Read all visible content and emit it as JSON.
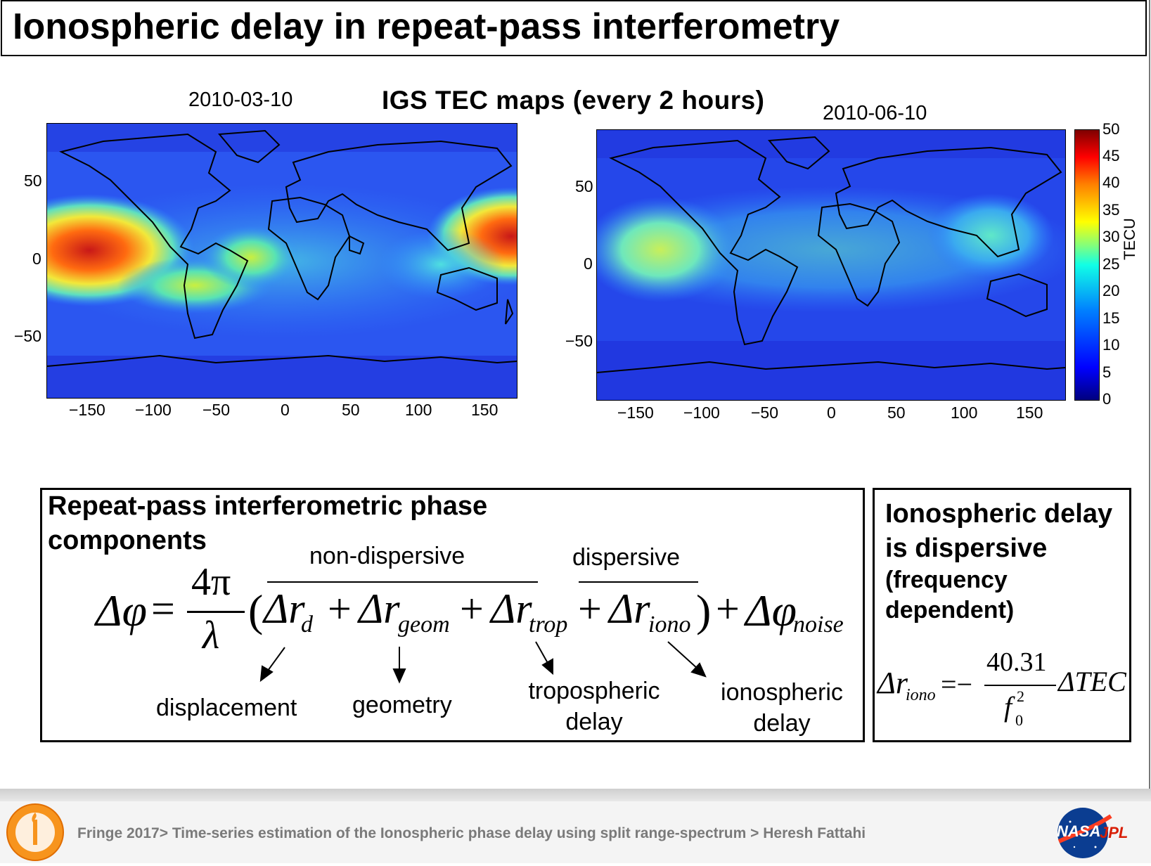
{
  "title": "Ionospheric delay in repeat-pass interferometry",
  "maps": {
    "heading": "IGS TEC maps (every 2 hours)",
    "left_date": "2010-03-10",
    "right_date": "2010-06-10",
    "x_ticks": [
      "−150",
      "−100",
      "−50",
      "0",
      "50",
      "100",
      "150"
    ],
    "y_ticks": [
      "50",
      "0",
      "−50"
    ],
    "colorbar": {
      "label": "TECU",
      "ticks": [
        "50",
        "45",
        "40",
        "35",
        "30",
        "25",
        "20",
        "15",
        "10",
        "5",
        "0"
      ]
    },
    "colors": {
      "low": "#1f2fd8",
      "mid": "#2f8cff",
      "high": "#e0301c"
    }
  },
  "phase_box": {
    "heading_line1": "Repeat-pass interferometric phase",
    "heading_line2": "components",
    "non_dispersive": "non-dispersive",
    "dispersive": "dispersive",
    "labels": {
      "displacement": "displacement",
      "geometry": "geometry",
      "trop_line1": "tropospheric",
      "trop_line2": "delay",
      "iono_line1": "ionospheric",
      "iono_line2": "delay"
    },
    "equation": {
      "lhs": "Δφ",
      "eq": "=",
      "num": "4π",
      "den": "λ",
      "open": "(",
      "d_main": "Δr",
      "d_sub": "d",
      "plus1": "+",
      "g_main": "Δr",
      "g_sub": "geom",
      "plus2": "+",
      "t_main": "Δr",
      "t_sub": "trop",
      "plus3": "+",
      "i_main": "Δr",
      "i_sub": "iono",
      "close": ")",
      "plus4": "+",
      "n_main": "Δφ",
      "n_sub": "noise"
    }
  },
  "iono_box": {
    "line1": "Ionospheric delay",
    "line2": "is dispersive",
    "line3": "(frequency",
    "line4": "dependent)",
    "formula": {
      "lhs_main": "Δr",
      "lhs_sub": "iono",
      "eq": "=−",
      "num": "40.31",
      "den_main": "f",
      "den_sup": "2",
      "den_sub": "0",
      "rhs": "ΔTEC"
    }
  },
  "footer": {
    "text": "Fringe 2017> Time-series estimation of the Ionospheric phase delay using split range-spectrum > Heresh Fattahi",
    "nasa": "NASA",
    "jpl": "JPL"
  }
}
